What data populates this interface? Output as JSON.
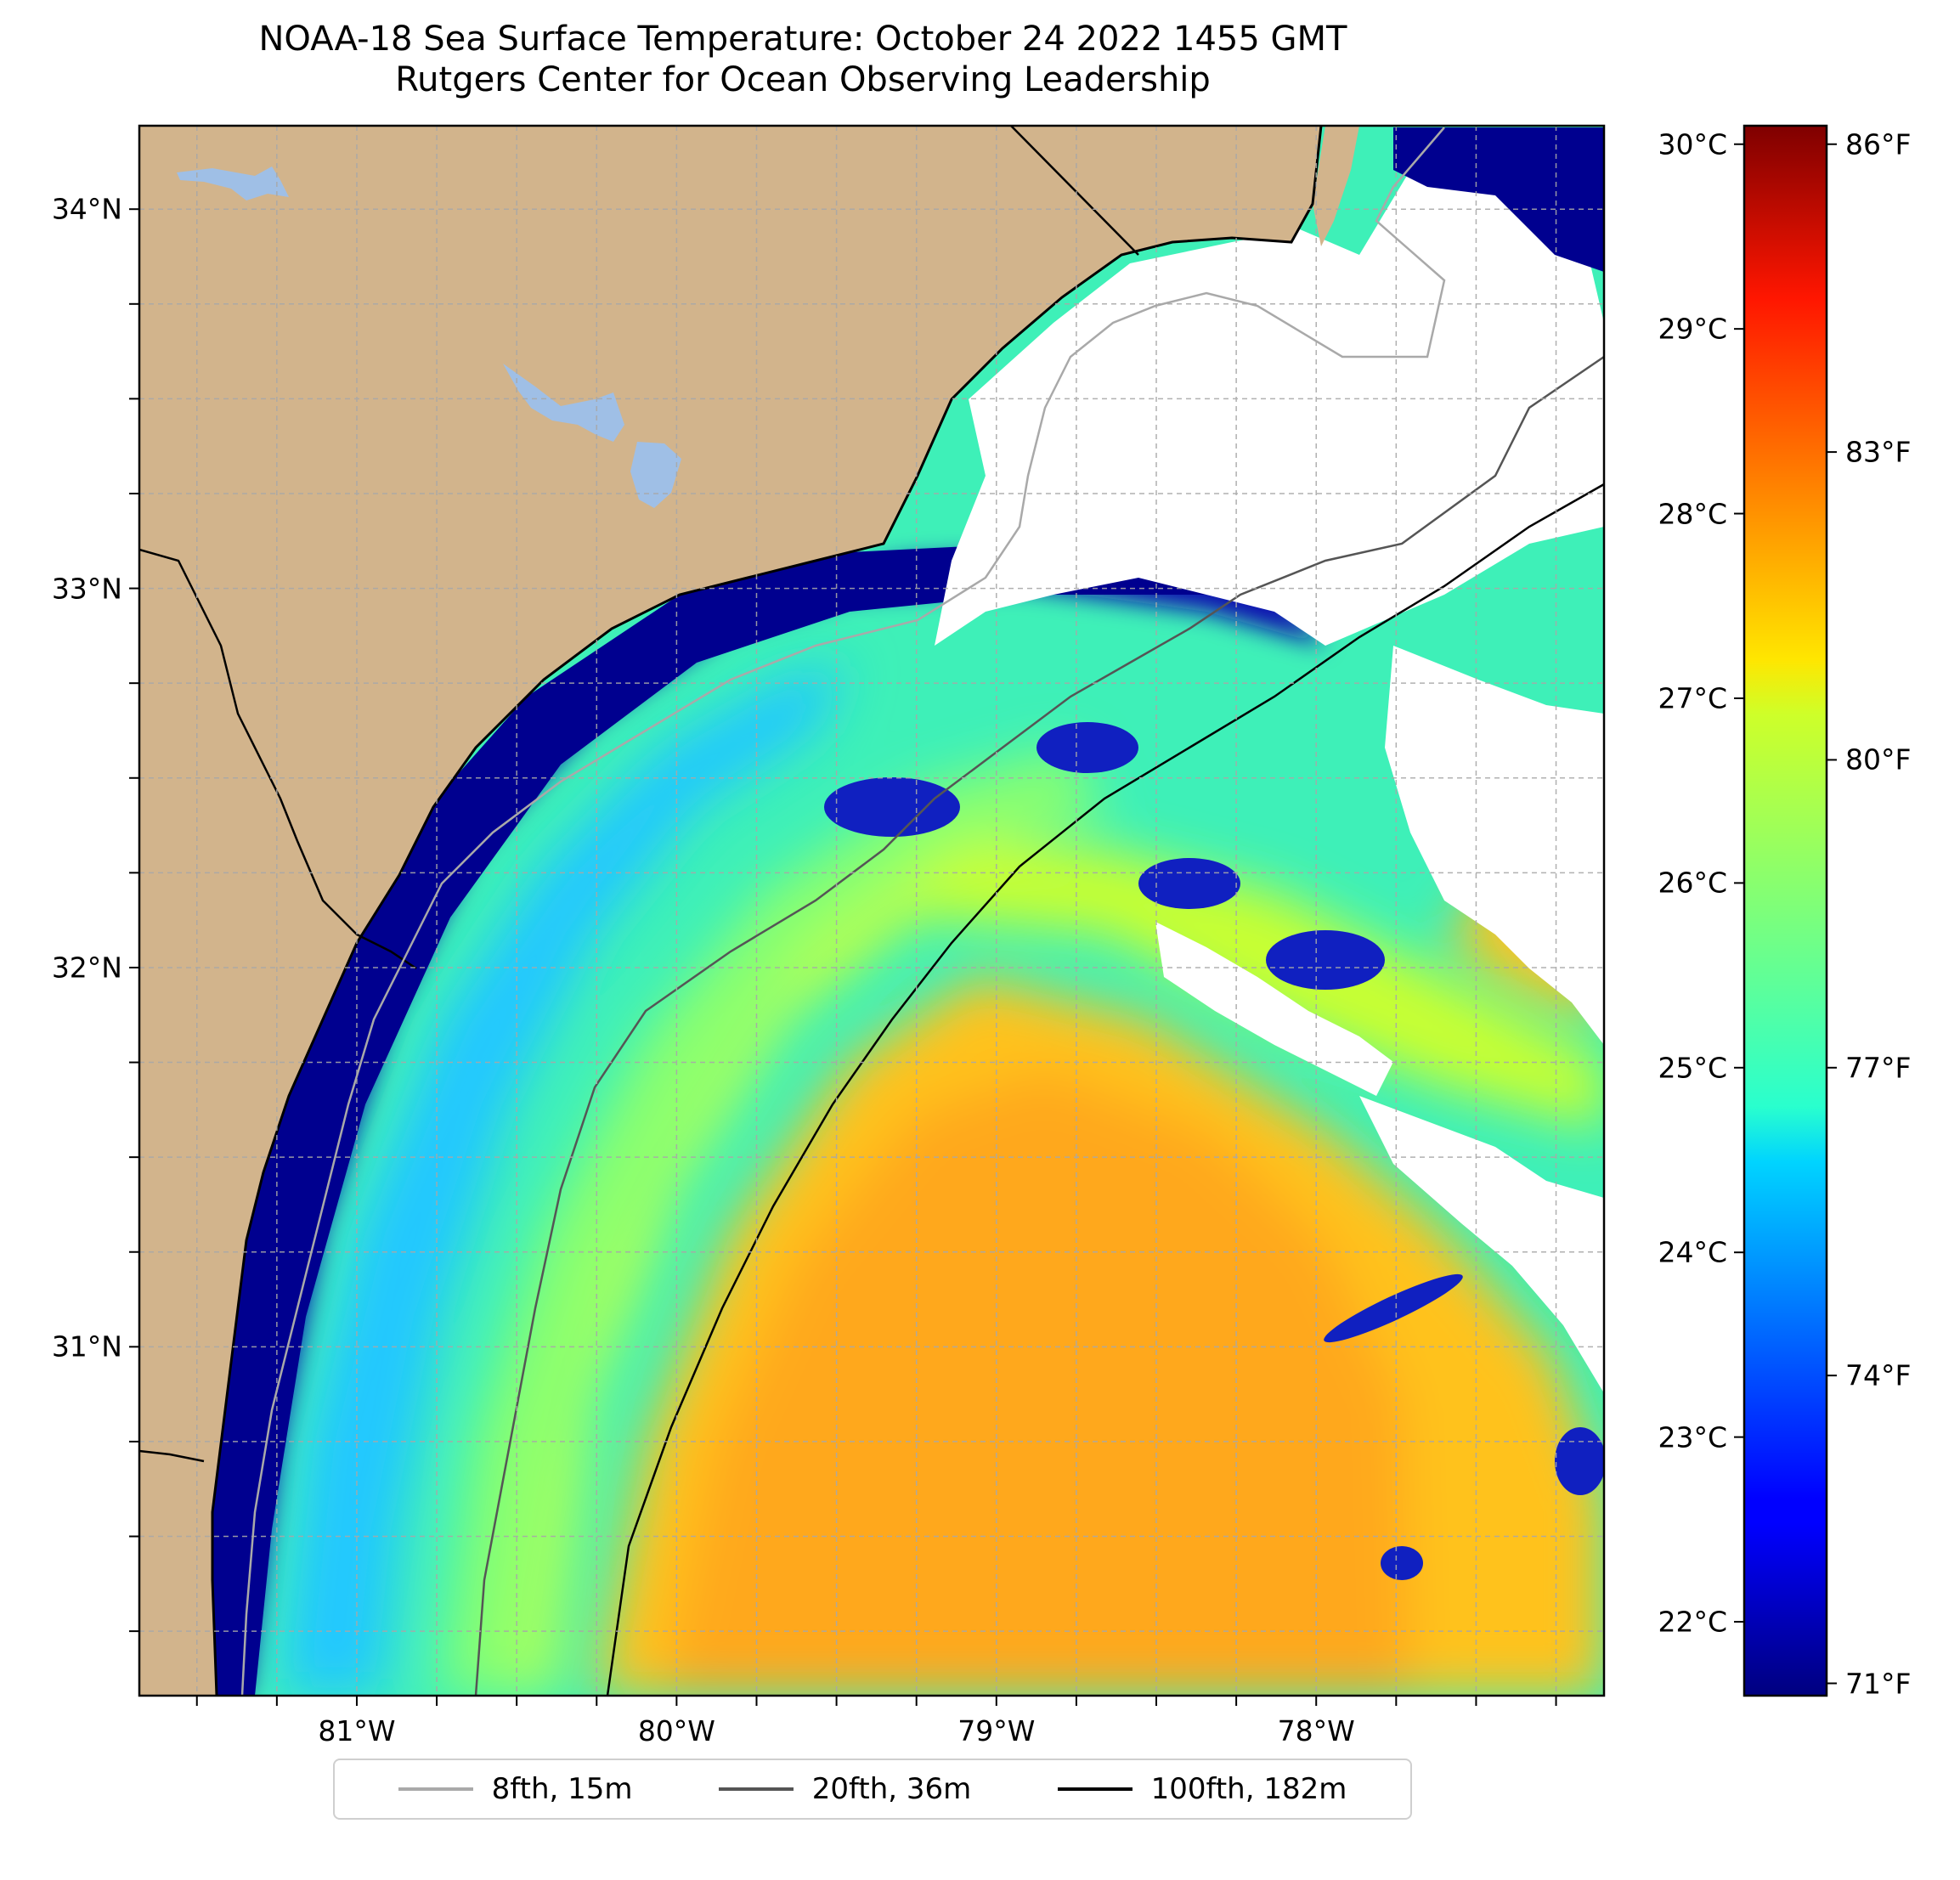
{
  "title": {
    "line1": "NOAA-18 Sea Surface Temperature: October 24 2022 1455 GMT",
    "line2": "Rutgers Center for Ocean Observing Leadership"
  },
  "map": {
    "lon_range": [
      -81.68,
      -77.1
    ],
    "lat_range": [
      30.08,
      34.22
    ],
    "lat_ticks": [
      {
        "value": 34,
        "label": "34°N"
      },
      {
        "value": 33,
        "label": "33°N"
      },
      {
        "value": 32,
        "label": "32°N"
      },
      {
        "value": 31,
        "label": "31°N"
      }
    ],
    "lon_ticks": [
      {
        "value": -81,
        "label": "81°W"
      },
      {
        "value": -80,
        "label": "80°W"
      },
      {
        "value": -79,
        "label": "79°W"
      },
      {
        "value": -78,
        "label": "78°W"
      }
    ],
    "gridline_interval_deg": 0.25,
    "colors": {
      "land": "#d2b48c",
      "lake": "#9fbfe6",
      "cloud_mask": "#ffffff",
      "grid": "#a8a8a8"
    }
  },
  "colorbar": {
    "colormap": "jet",
    "range_c": [
      21.6,
      30.1
    ],
    "celsius_labels": [
      {
        "value": 30,
        "label": "30°C"
      },
      {
        "value": 29,
        "label": "29°C"
      },
      {
        "value": 28,
        "label": "28°C"
      },
      {
        "value": 27,
        "label": "27°C"
      },
      {
        "value": 26,
        "label": "26°C"
      },
      {
        "value": 25,
        "label": "25°C"
      },
      {
        "value": 24,
        "label": "24°C"
      },
      {
        "value": 23,
        "label": "23°C"
      },
      {
        "value": 22,
        "label": "22°C"
      }
    ],
    "fahrenheit_labels": [
      {
        "value": 86,
        "label": "86°F"
      },
      {
        "value": 83,
        "label": "83°F"
      },
      {
        "value": 80,
        "label": "80°F"
      },
      {
        "value": 77,
        "label": "77°F"
      },
      {
        "value": 74,
        "label": "74°F"
      },
      {
        "value": 71,
        "label": "71°F"
      }
    ]
  },
  "legend": {
    "entries": [
      {
        "label": "8fth, 15m",
        "color": "#a9a9a9"
      },
      {
        "label": "20fth, 36m",
        "color": "#555555"
      },
      {
        "label": "100fth, 182m",
        "color": "#000000"
      }
    ]
  }
}
